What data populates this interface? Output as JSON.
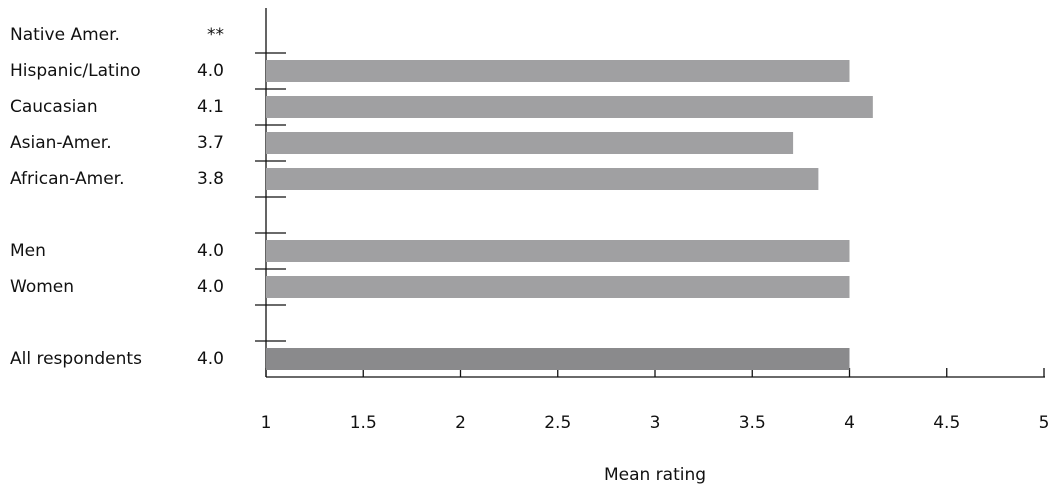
{
  "chart_data": {
    "type": "barh",
    "xlabel": "Mean rating",
    "categories": [
      "Native Amer.",
      "Hispanic/Latino",
      "Caucasian",
      "Asian-Amer.",
      "African-Amer.",
      null,
      "Men",
      "Women",
      null,
      "All respondents"
    ],
    "values": [
      null,
      4.0,
      4.12,
      3.71,
      3.84,
      null,
      4.0,
      4.0,
      null,
      4.0
    ],
    "value_labels": [
      "**",
      "4.0",
      "4.1",
      "3.7",
      "3.8",
      null,
      "4.0",
      "4.0",
      null,
      "4.0"
    ],
    "colors": [
      "#a0a0a2",
      "#a0a0a2",
      "#a0a0a2",
      "#a0a0a2",
      "#a0a0a2",
      "#a0a0a2",
      "#a0a0a2",
      "#a0a0a2",
      "#a0a0a2",
      "#8a8a8c"
    ],
    "xlim": [
      1,
      5
    ],
    "xticks": [
      1,
      1.5,
      2,
      2.5,
      3,
      3.5,
      4,
      4.5,
      5
    ]
  }
}
